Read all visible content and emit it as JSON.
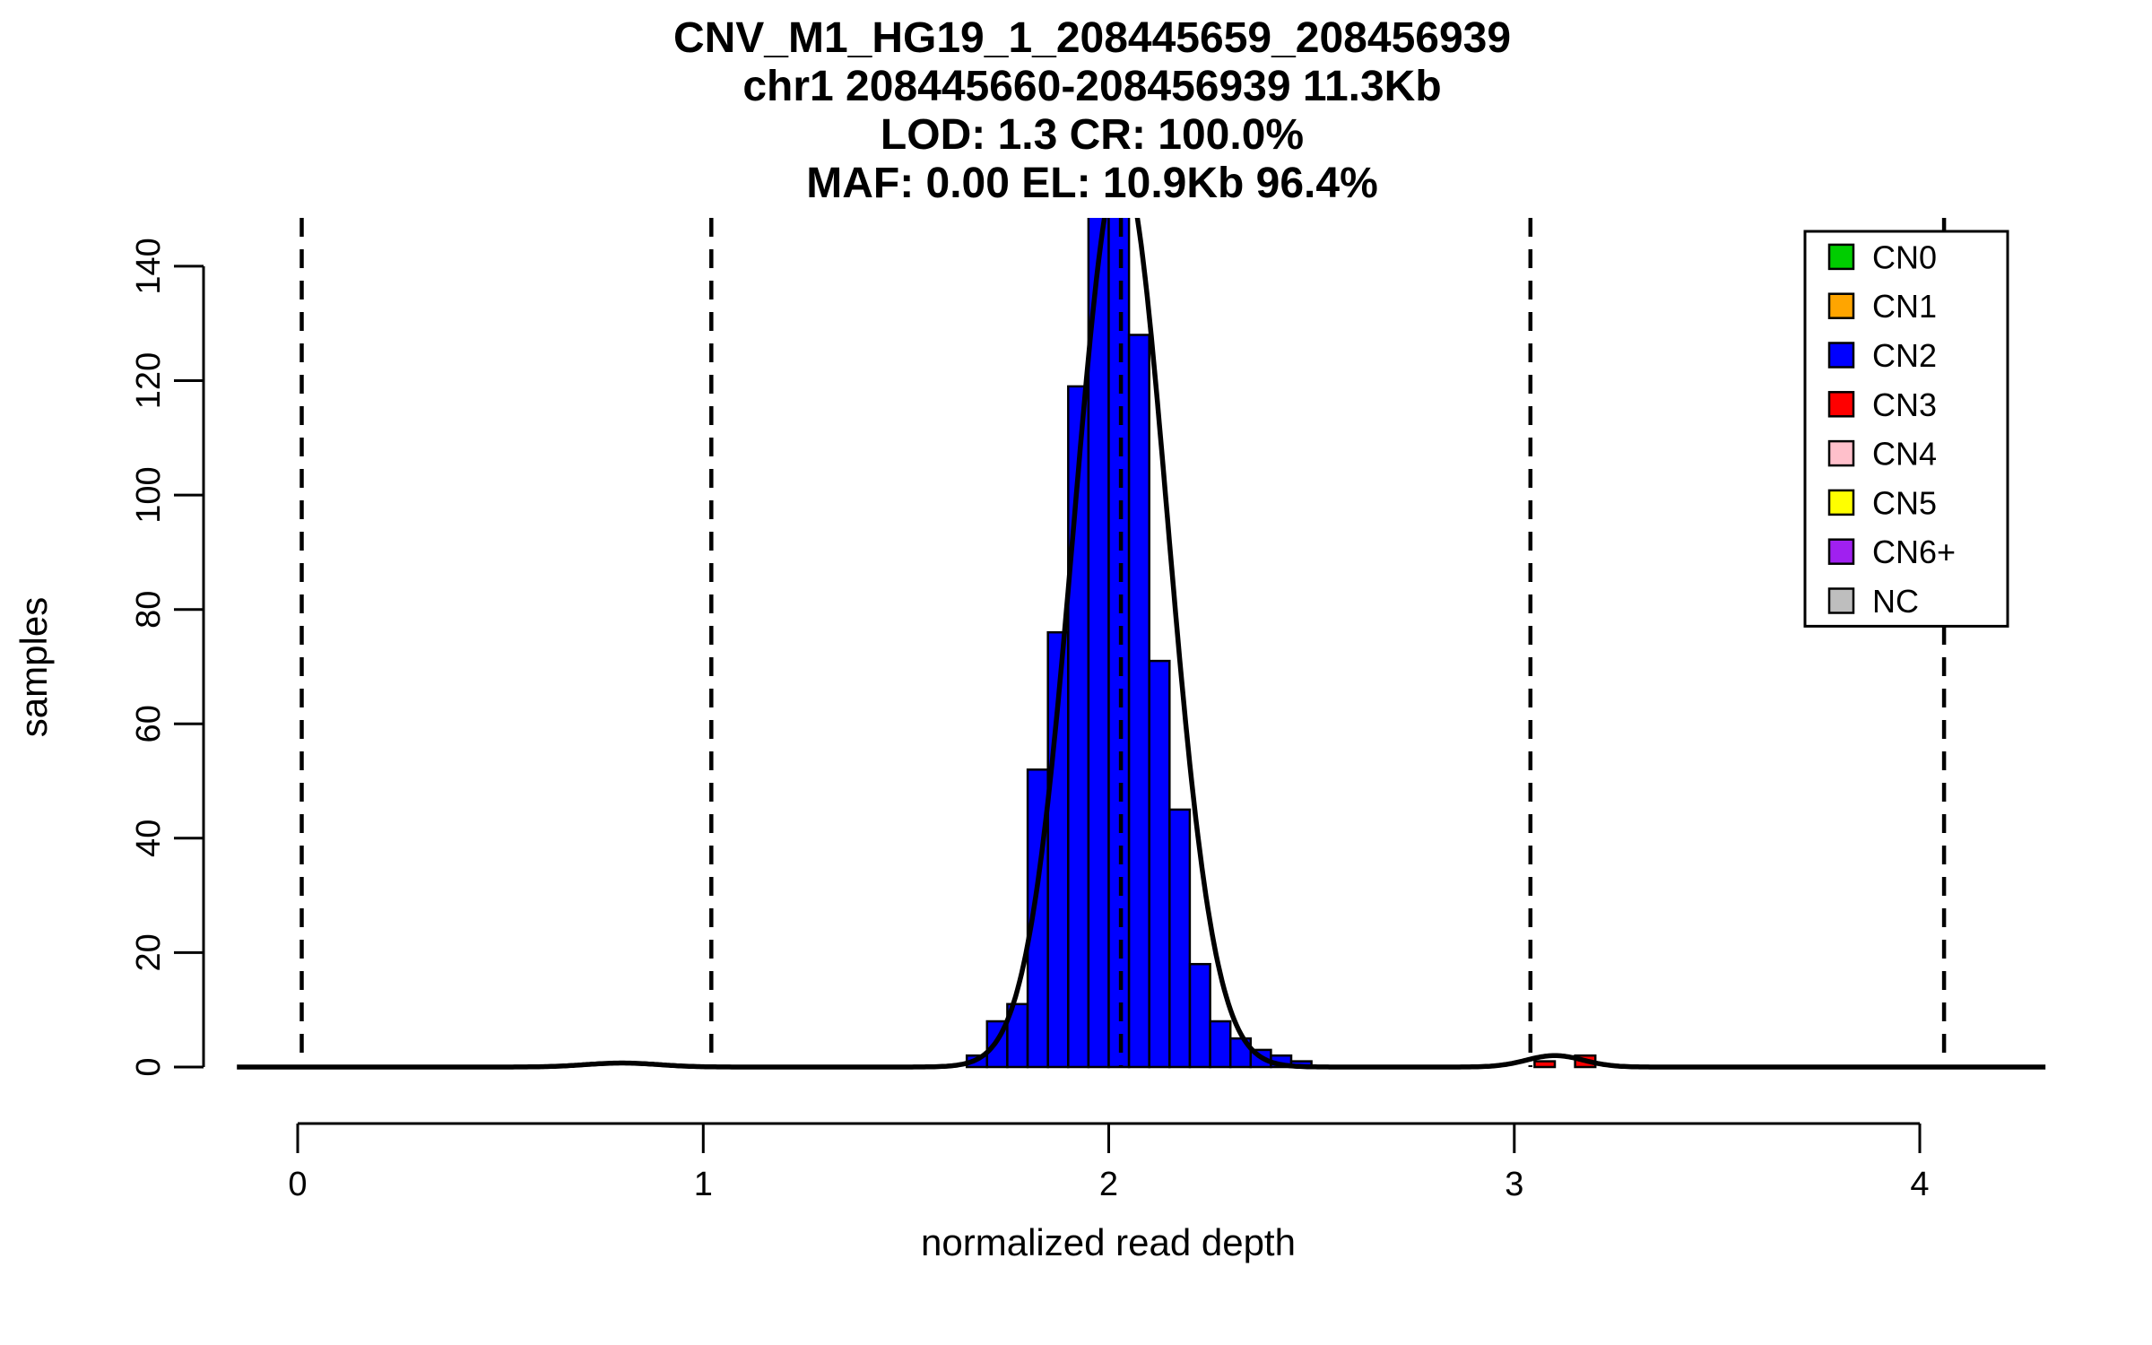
{
  "figure": {
    "background": "#FFFFFF"
  },
  "chart_data": {
    "type": "bar",
    "subtype": "histogram",
    "title_lines": [
      "CNV_M1_HG19_1_208445659_208456939",
      "chr1 208445660-208456939 11.3Kb",
      "LOD: 1.3 CR: 100.0%",
      "MAF: 0.00 EL: 10.9Kb 96.4%"
    ],
    "xlabel": "normalized read depth",
    "ylabel": "samples",
    "x_ticks": [
      0,
      1,
      2,
      3,
      4
    ],
    "y_ticks": [
      0,
      20,
      40,
      60,
      80,
      100,
      120,
      140
    ],
    "xlim": [
      -0.15,
      4.31
    ],
    "ylim": [
      0,
      148
    ],
    "grid": false,
    "bin_width": 0.05,
    "series": [
      {
        "name": "CN2",
        "color": "#0000FF",
        "bins": [
          {
            "x": 1.65,
            "count": 2
          },
          {
            "x": 1.7,
            "count": 8
          },
          {
            "x": 1.75,
            "count": 11
          },
          {
            "x": 1.8,
            "count": 52
          },
          {
            "x": 1.85,
            "count": 76
          },
          {
            "x": 1.9,
            "count": 119
          },
          {
            "x": 1.95,
            "count": 150
          },
          {
            "x": 2.0,
            "count": 152
          },
          {
            "x": 2.05,
            "count": 128
          },
          {
            "x": 2.1,
            "count": 71
          },
          {
            "x": 2.15,
            "count": 45
          },
          {
            "x": 2.2,
            "count": 18
          },
          {
            "x": 2.25,
            "count": 8
          },
          {
            "x": 2.3,
            "count": 5
          },
          {
            "x": 2.35,
            "count": 3
          },
          {
            "x": 2.4,
            "count": 2
          },
          {
            "x": 2.45,
            "count": 1
          }
        ]
      },
      {
        "name": "CN3",
        "color": "#FF0000",
        "bins": [
          {
            "x": 3.05,
            "count": 1
          },
          {
            "x": 3.15,
            "count": 2
          }
        ]
      }
    ],
    "dashed_lines_x": [
      0.01,
      1.02,
      2.03,
      3.04,
      4.06
    ],
    "density_curve": {
      "color": "#000000",
      "components": [
        {
          "mean": 2.03,
          "sd": 0.115,
          "amp": 158
        },
        {
          "mean": 3.1,
          "sd": 0.07,
          "amp": 2
        },
        {
          "mean": 0.8,
          "sd": 0.09,
          "amp": 0.7
        }
      ]
    },
    "legend": {
      "position": "top-right",
      "entries": [
        {
          "label": "CN0",
          "color": "#00CD00"
        },
        {
          "label": "CN1",
          "color": "#FFA500"
        },
        {
          "label": "CN2",
          "color": "#0000FF"
        },
        {
          "label": "CN3",
          "color": "#FF0000"
        },
        {
          "label": "CN4",
          "color": "#FFC0CB"
        },
        {
          "label": "CN5",
          "color": "#FFFF00"
        },
        {
          "label": "CN6+",
          "color": "#A020F0"
        },
        {
          "label": "NC",
          "color": "#BEBEBE"
        }
      ]
    }
  }
}
